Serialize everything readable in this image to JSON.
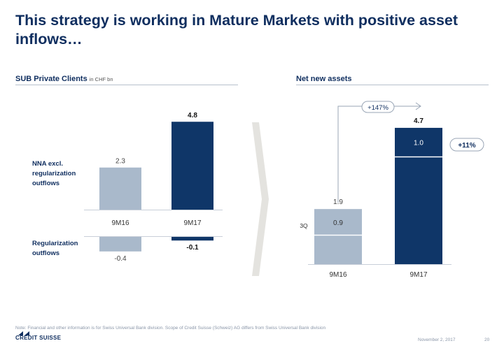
{
  "title": "This strategy is working in Mature Markets with positive asset inflows…",
  "left_panel": {
    "heading": "SUB Private Clients",
    "unit": "in CHF bn",
    "row_labels": {
      "nna": "NNA excl. regularization outflows",
      "reg": "Regularization outflows"
    }
  },
  "right_panel": {
    "heading": "Net new assets",
    "growth_total": "+147%",
    "growth_3q": "+11%",
    "q3_label": "3Q"
  },
  "note": "Note: Financial and other information is for Swiss Universal Bank division. Scope of Credit Suisse (Schweiz) AG differs from Swiss Universal Bank division",
  "footer": {
    "date": "November 2, 2017",
    "page": "20",
    "logo": "CREDIT SUISSE"
  },
  "colors": {
    "light": "#a9b9cb",
    "dark": "#0f3668",
    "navy_text": "#0f2e5f",
    "chevron": "#e4e3df"
  },
  "chart_data": [
    {
      "type": "bar",
      "title": "SUB Private Clients",
      "unit": "in CHF bn",
      "categories": [
        "9M16",
        "9M17"
      ],
      "series": [
        {
          "name": "NNA excl. regularization outflows",
          "values": [
            2.3,
            4.8
          ],
          "labels": [
            "2.3",
            "4.8"
          ]
        },
        {
          "name": "Regularization outflows",
          "values": [
            -0.4,
            -0.1
          ],
          "labels": [
            "-0.4",
            "-0.1"
          ]
        }
      ]
    },
    {
      "type": "bar",
      "stacked": true,
      "title": "Net new assets",
      "categories": [
        "9M16",
        "9M17"
      ],
      "totals": [
        1.9,
        4.7
      ],
      "total_labels": [
        "1.9",
        "4.7"
      ],
      "series": [
        {
          "name": "3Q",
          "values": [
            0.9,
            1.0
          ],
          "labels": [
            "0.9",
            "1.0"
          ]
        },
        {
          "values": [
            1.0,
            3.7
          ]
        }
      ],
      "annotations": [
        "+147%",
        "+11%"
      ]
    }
  ]
}
